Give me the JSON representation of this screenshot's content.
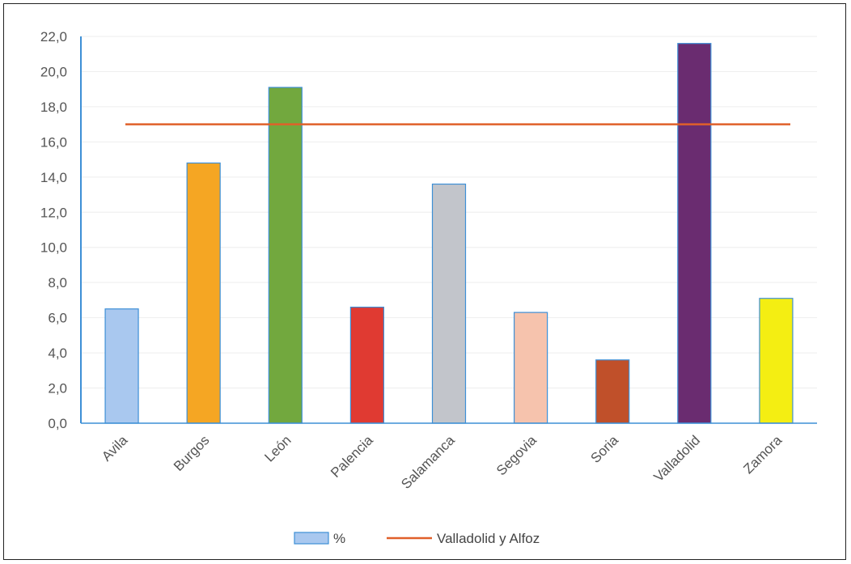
{
  "chart_data": {
    "type": "bar",
    "title": "",
    "xlabel": "",
    "ylabel": "",
    "ylim": [
      0,
      22
    ],
    "ytick_step": 2,
    "ytick_labels": [
      "0,0",
      "2,0",
      "4,0",
      "6,0",
      "8,0",
      "10,0",
      "12,0",
      "14,0",
      "16,0",
      "18,0",
      "20,0",
      "22,0"
    ],
    "categories": [
      "Avila",
      "Burgos",
      "León",
      "Palencia",
      "Salamanca",
      "Segovia",
      "Soria",
      "Valladolid",
      "Zamora"
    ],
    "series": [
      {
        "name": "%",
        "values": [
          6.5,
          14.8,
          19.1,
          6.6,
          13.6,
          6.3,
          3.6,
          21.6,
          7.1
        ],
        "colors": [
          "#a9c8ef",
          "#f5a623",
          "#72a83e",
          "#e03a32",
          "#c2c5cb",
          "#f6c3ad",
          "#c0502a",
          "#6a2c70",
          "#f4ee12"
        ]
      },
      {
        "name": "Valladolid y Alfoz",
        "type": "line",
        "value": 17.0,
        "color": "#e0602a"
      }
    ],
    "grid": true,
    "legend_position": "bottom-center",
    "legend_swatch_color": "#a9c8ef",
    "bar_border_color": "#3d8fd6"
  }
}
